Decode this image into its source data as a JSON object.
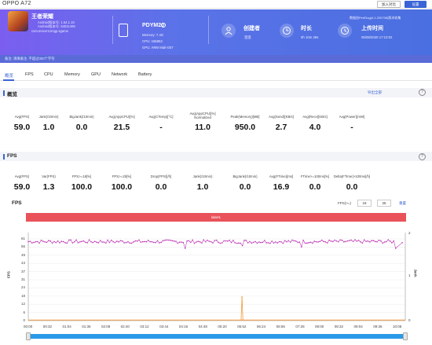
{
  "window": {
    "title": "OPPO A72",
    "add_label": "加入对比",
    "settings_label": "设置"
  },
  "app": {
    "name": "王者荣耀",
    "android_version": "Android版本号: 1.54.1.10",
    "android_build": "Android版本号: 54011408",
    "package": "com.tencent.tmgp.sgame"
  },
  "device": {
    "model": "PDYM20",
    "memory": "Memory: 7.4G",
    "cpu": "CPU: mt6853",
    "gpu": "GPU: ARM Mali-G57"
  },
  "creator": {
    "title": "创建者",
    "value": "温温"
  },
  "duration": {
    "title": "时长",
    "value": "0h 10m 29s"
  },
  "upload": {
    "title": "上传时间",
    "value": "05/08/2020 17:13:02",
    "source": "数据由PerfDog(4.1.200708)版本收集"
  },
  "note": "备注: 请填备注, 不超过300个字符",
  "tabs": [
    "概览",
    "FPS",
    "CPU",
    "Memory",
    "GPU",
    "Network",
    "Battery"
  ],
  "overview": {
    "title": "概览",
    "export_label": "导出全部",
    "metrics": [
      {
        "label": "Avg(FPS)",
        "value": "59.0"
      },
      {
        "label": "Jank(/10min)",
        "value": "1.0"
      },
      {
        "label": "BigJank(/10min)",
        "value": "0.0"
      },
      {
        "label": "Avg(AppCPU)[%]",
        "value": "21.5"
      },
      {
        "label": "Avg(CTemp)[°C]",
        "value": "-"
      },
      {
        "label": "Avg(AppCPU)[%] Normalized",
        "value": "11.0"
      },
      {
        "label": "Peak(Memory)[MB]",
        "value": "950.0"
      },
      {
        "label": "Avg(Send)[KB/s]",
        "value": "2.7"
      },
      {
        "label": "Avg(Recv)[KB/s]",
        "value": "4.0"
      },
      {
        "label": "Avg(Power)[mW]",
        "value": "-"
      }
    ]
  },
  "fps_section": {
    "title": "FPS",
    "metrics": [
      {
        "label": "Avg(FPS)",
        "value": "59.0"
      },
      {
        "label": "Var(FPS)",
        "value": "1.3"
      },
      {
        "label": "FPS>=18[%]",
        "value": "100.0"
      },
      {
        "label": "FPS>=25[%]",
        "value": "100.0"
      },
      {
        "label": "Drop(FPS)[/h]",
        "value": "0.0"
      },
      {
        "label": "Jank(/10min)",
        "value": "1.0"
      },
      {
        "label": "BigJank(/10min)",
        "value": "0.0"
      },
      {
        "label": "Avg(FTime)[ms]",
        "value": "16.9"
      },
      {
        "label": "FTime>=100ms[%]",
        "value": "0.0"
      },
      {
        "label": "Delta(FTime)>100ms[/h]",
        "value": "0.0"
      }
    ]
  },
  "chart_controls": {
    "fps_label": "FPS(>=)",
    "fps_a": "18",
    "fps_b": "25",
    "reset_label": "重置",
    "marker_label": "label1"
  },
  "chart_data": {
    "type": "line",
    "title": "FPS",
    "ylabel": "FPS",
    "y2label": "Jank",
    "ylim": [
      0,
      61
    ],
    "y2lim": [
      0,
      2
    ],
    "yticks": [
      "61",
      "55",
      "49",
      "43",
      "37",
      "31",
      "24",
      "18",
      "12",
      "6",
      "0"
    ],
    "y2ticks": [
      "2",
      "1",
      "0"
    ],
    "xticks": [
      "00:00",
      "00:32",
      "01:04",
      "01:36",
      "02:08",
      "02:40",
      "03:12",
      "03:44",
      "04:16",
      "04:48",
      "05:20",
      "05:52",
      "06:24",
      "06:56",
      "07:28",
      "08:00",
      "08:32",
      "09:04",
      "09:36",
      "10:08"
    ],
    "series": [
      {
        "name": "FPS",
        "color": "#c03ab8",
        "mean": 59.0,
        "min": 54,
        "max": 61,
        "dips": [
          {
            "t": "04:17",
            "value": 54
          },
          {
            "t": "05:52",
            "value": 56
          },
          {
            "t": "07:30",
            "value": 55
          },
          {
            "t": "10:08",
            "value": 54
          }
        ]
      },
      {
        "name": "Jank",
        "color": "#f39a3c",
        "spike_at": "05:52",
        "spike_value": 1
      }
    ]
  }
}
